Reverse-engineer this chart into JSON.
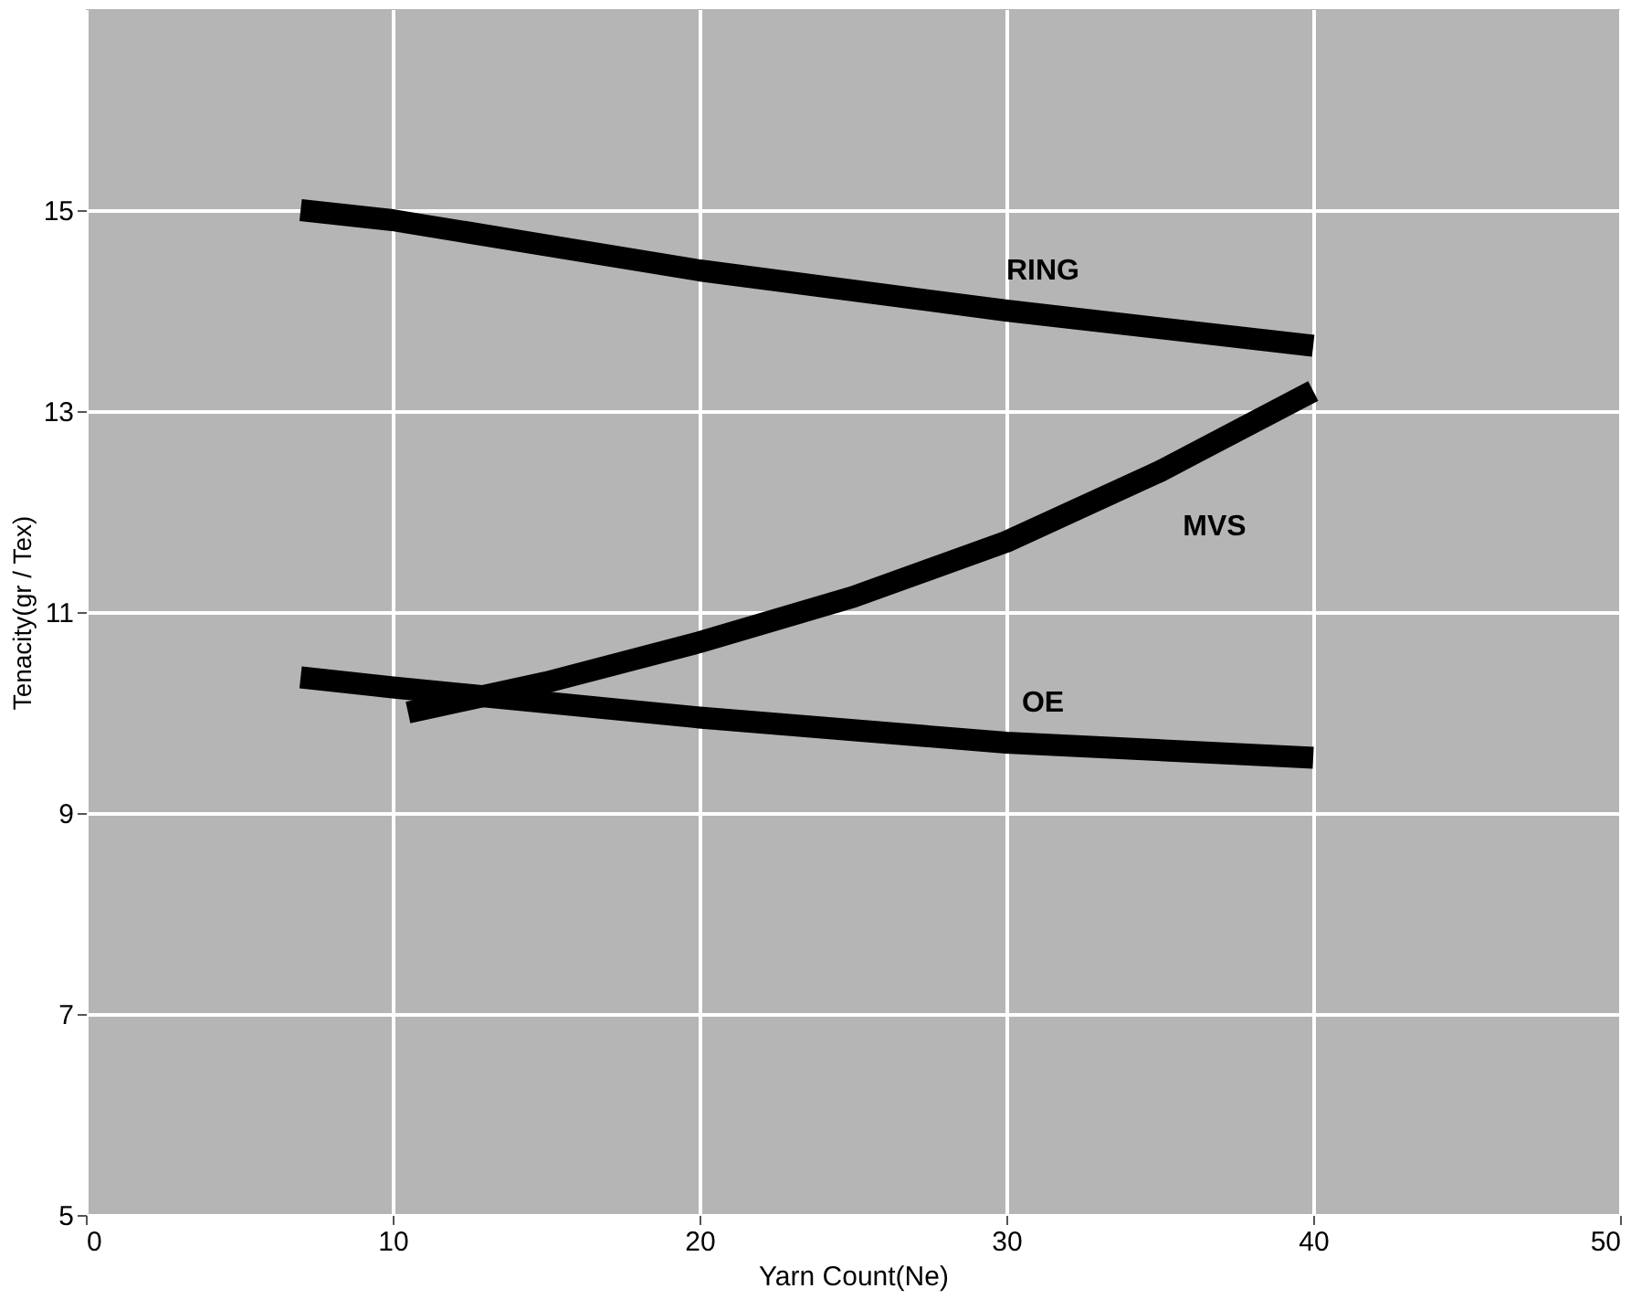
{
  "chart_data": {
    "type": "line",
    "xlabel": "Yarn Count(Ne)",
    "ylabel": "Tenacity(gr / Tex)",
    "xlim": [
      0,
      50
    ],
    "xticks": [
      0,
      10,
      20,
      30,
      40,
      50
    ],
    "ylim": [
      5,
      17
    ],
    "yticks": [
      5,
      7,
      9,
      11,
      13,
      15
    ],
    "grid": true,
    "marker": "none",
    "line_style": "solid",
    "series": [
      {
        "name": "RING",
        "color": "#000000",
        "x": [
          7,
          10,
          20,
          30,
          40
        ],
        "values": [
          15.0,
          14.9,
          14.4,
          14.0,
          13.65
        ]
      },
      {
        "name": "MVS",
        "color": "#000000",
        "x": [
          10.5,
          15,
          20,
          25,
          30,
          35,
          40
        ],
        "values": [
          10.0,
          10.3,
          10.7,
          11.15,
          11.7,
          12.4,
          13.2
        ]
      },
      {
        "name": "OE",
        "color": "#000000",
        "x": [
          7,
          10,
          20,
          30,
          40
        ],
        "values": [
          10.35,
          10.25,
          9.95,
          9.7,
          9.55
        ]
      }
    ]
  }
}
